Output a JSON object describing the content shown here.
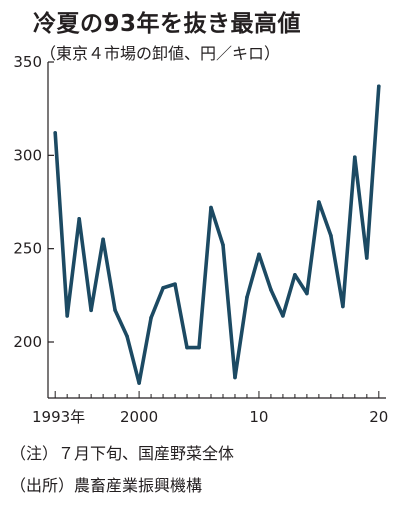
{
  "chart_data": {
    "type": "line",
    "title": "冷夏の93年を抜き最高値",
    "subtitle": "（東京４市場の卸値、円／キロ）",
    "x": [
      1993,
      1994,
      1995,
      1996,
      1997,
      1998,
      1999,
      2000,
      2001,
      2002,
      2003,
      2004,
      2005,
      2006,
      2007,
      2008,
      2009,
      2010,
      2011,
      2012,
      2013,
      2014,
      2015,
      2016,
      2017,
      2018,
      2019,
      2020
    ],
    "series": [
      {
        "values": [
          312,
          214,
          266,
          217,
          255,
          217,
          203,
          178,
          213,
          229,
          231,
          197,
          197,
          272,
          252,
          181,
          224,
          247,
          228,
          214,
          236,
          226,
          275,
          257,
          219,
          299,
          245,
          337
        ],
        "color": "#1c4a63"
      }
    ],
    "x_ticks": [
      {
        "value": 1993,
        "label": "1993年"
      },
      {
        "value": 2000,
        "label": "2000"
      },
      {
        "value": 2010,
        "label": "10"
      },
      {
        "value": 2020,
        "label": "20"
      }
    ],
    "y_ticks": [
      {
        "value": 200,
        "label": "200"
      },
      {
        "value": 250,
        "label": "250"
      },
      {
        "value": 300,
        "label": "300"
      },
      {
        "value": 350,
        "label": "350"
      }
    ],
    "ylim": [
      170,
      350
    ],
    "xlim": [
      1992.4,
      2020.6
    ],
    "grid": false,
    "axis_color": "#231f20"
  },
  "notes": [
    "（注）７月下旬、国産野菜全体",
    "（出所）農畜産業振興機構"
  ]
}
